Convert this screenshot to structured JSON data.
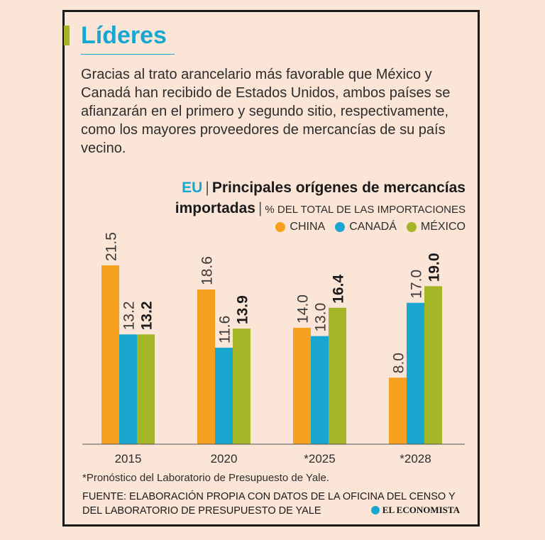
{
  "header": {
    "title": "Líderes",
    "description": "Gracias al trato arancelario más favorable que México y Canadá han recibido de Estados Unidos, ambos países se afianzarán en el primero y segundo sitio, respectivamente, como los mayores proveedores de mercancías de su país vecino."
  },
  "chart_header": {
    "prefix": "EU",
    "title_line1": "Principales orígenes de mercancías",
    "title_line2": "importadas",
    "subtitle": "% DEL TOTAL DE LAS IMPORTACIONES"
  },
  "colors": {
    "china": "#f5a01e",
    "canada": "#19a7cf",
    "mexico": "#a4b526",
    "accent": "#19a7cf",
    "text": "#2d2d2d"
  },
  "chart_data": {
    "type": "bar",
    "title": "Principales orígenes de mercancías importadas",
    "subtitle": "% DEL TOTAL DE LAS IMPORTACIONES",
    "categories": [
      "2015",
      "2020",
      "*2025",
      "*2028"
    ],
    "series": [
      {
        "name": "CHINA",
        "values": [
          21.5,
          18.6,
          14.0,
          8.0
        ],
        "labels": [
          "21.5",
          "18.6",
          "14.0",
          "8.0"
        ],
        "color": "#f5a01e"
      },
      {
        "name": "CANADÁ",
        "values": [
          13.2,
          11.6,
          13.0,
          17.0
        ],
        "labels": [
          "13.2",
          "11.6",
          "13.0",
          "17.0"
        ],
        "color": "#19a7cf"
      },
      {
        "name": "MÉXICO",
        "values": [
          13.2,
          13.9,
          16.4,
          19.0
        ],
        "labels": [
          "13.2",
          "13.9",
          "16.4",
          "19.0"
        ],
        "color": "#a4b526",
        "bold_labels": true
      }
    ],
    "ylim": [
      0,
      26
    ],
    "grid": false,
    "legend": "top-right"
  },
  "footer": {
    "footnote": "*Pronóstico del Laboratorio de Presupuesto de Yale.",
    "source": "FUENTE: ELABORACIÓN PROPIA CON DATOS DE LA OFICINA DEL CENSO Y DEL LABORATORIO DE PRESUPUESTO DE YALE",
    "brand": "EL ECONOMISTA"
  }
}
